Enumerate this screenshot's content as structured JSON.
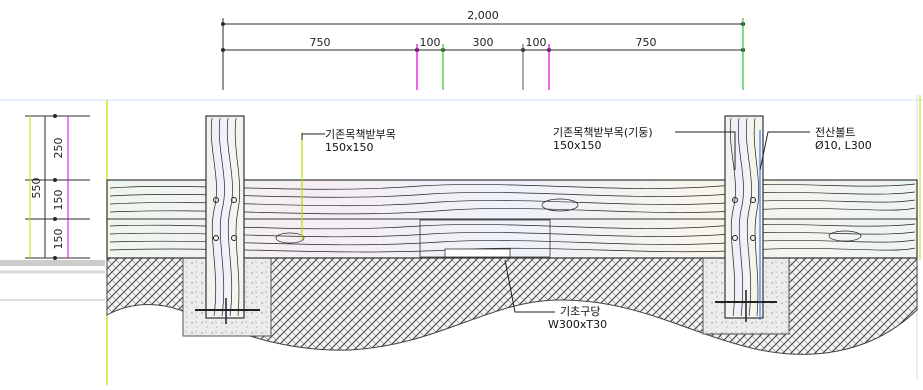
{
  "colors": {
    "dim_line": "#2b2b2b",
    "magenta": "#e000e0",
    "green": "#2ec42e",
    "yellow_green": "#b8e000",
    "wood_outline": "#333333",
    "grain": "#222222",
    "soil_hatch": "#3a3a3a",
    "concrete": "#e8e8e8",
    "bolt": "#222222"
  },
  "top_dimensions": {
    "total": "2,000",
    "segments": [
      "750",
      "100",
      "300",
      "100",
      "750"
    ]
  },
  "left_dimensions": {
    "total": "550",
    "segments": [
      "250",
      "150",
      "150"
    ]
  },
  "annotations": {
    "beam_label": "기존목책받부목",
    "beam_size": "150x150",
    "post_label": "기존목책받부목(기둥)",
    "post_size": "150x150",
    "bolt_label": "전산볼트",
    "bolt_size": "Ø10, L300",
    "footing_label": "기초구당",
    "footing_size": "W300xT30"
  }
}
